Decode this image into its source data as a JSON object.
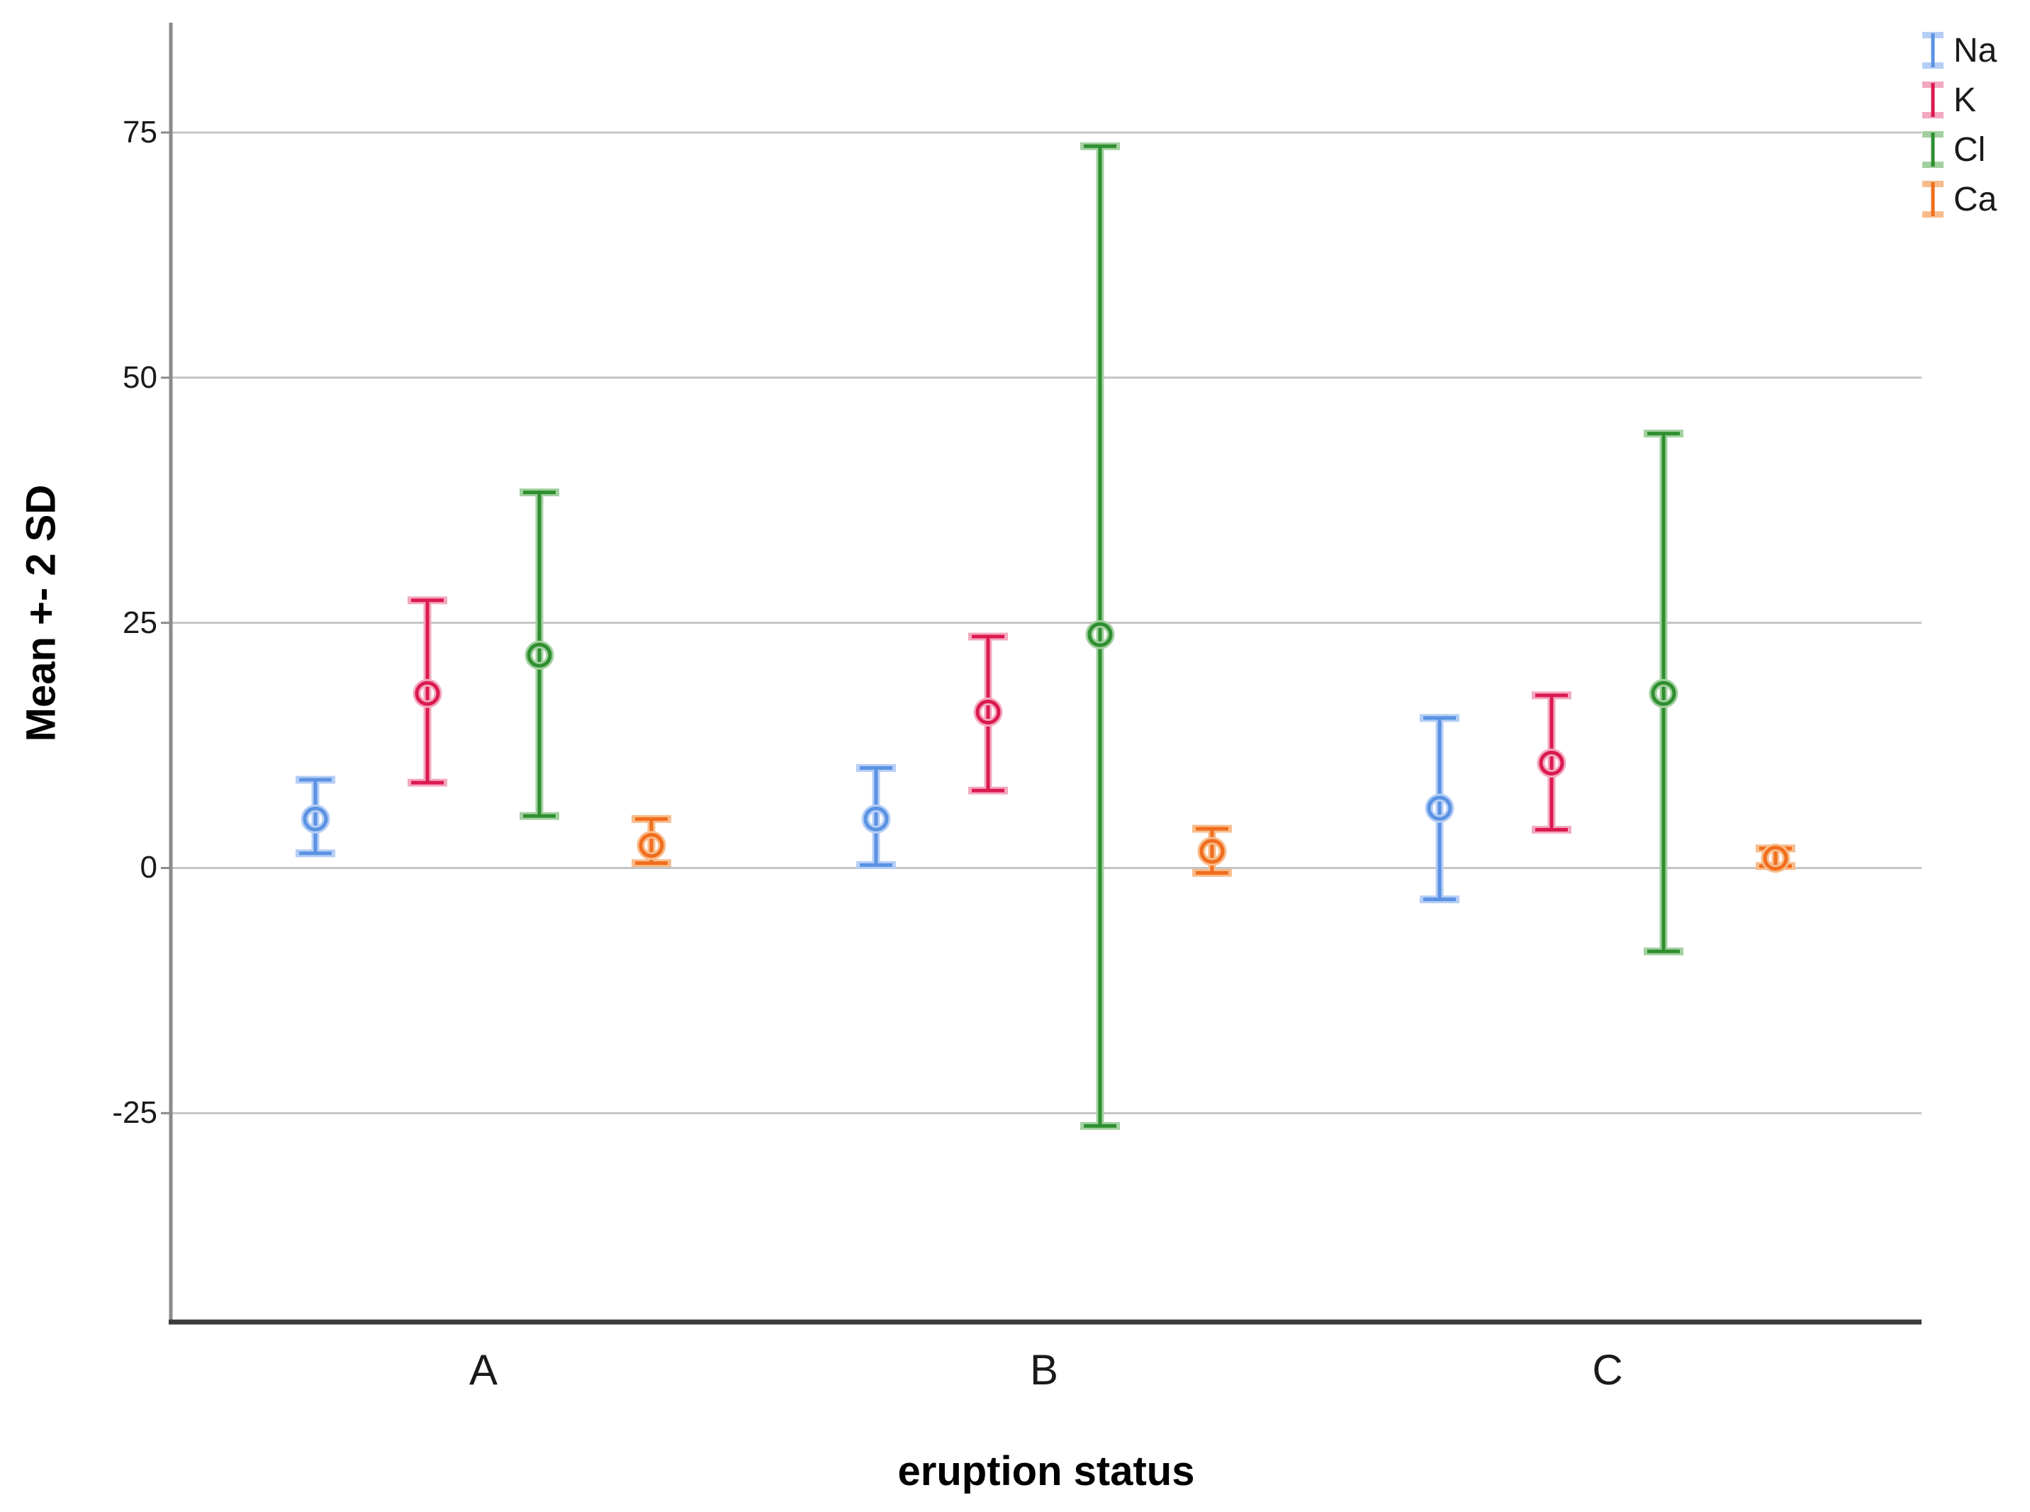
{
  "figure": {
    "background": "#ffffff"
  },
  "axes": {
    "x_title": "eruption status",
    "y_title": "Mean +- 2 SD",
    "y_tick_labels": [
      "75",
      "50",
      "25",
      "0",
      "-25"
    ],
    "x_category_labels": [
      "A",
      "B",
      "C"
    ]
  },
  "colors": {
    "axis_line": "#8a8a8a",
    "x_axis_line": "#3a3a3a",
    "gridline": "#c4c4c4",
    "text": "#1a1a1a"
  },
  "chart_data": {
    "type": "errorbar",
    "title": "",
    "xlabel": "eruption status",
    "ylabel": "Mean +- 2 SD",
    "categories": [
      "A",
      "B",
      "C"
    ],
    "series": [
      {
        "name": "Na",
        "color": "#5b92e3",
        "halo": "#b5cef5",
        "points": [
          {
            "cat": "A",
            "mean": 5.0,
            "low": 1.5,
            "high": 9.0
          },
          {
            "cat": "B",
            "mean": 5.0,
            "low": 0.3,
            "high": 10.2
          },
          {
            "cat": "C",
            "mean": 6.1,
            "low": -3.2,
            "high": 15.3
          }
        ]
      },
      {
        "name": "K",
        "color": "#db1a50",
        "halo": "#f3a8bf",
        "points": [
          {
            "cat": "A",
            "mean": 17.8,
            "low": 8.7,
            "high": 27.3
          },
          {
            "cat": "B",
            "mean": 15.9,
            "low": 7.9,
            "high": 23.6
          },
          {
            "cat": "C",
            "mean": 10.7,
            "low": 3.9,
            "high": 17.6
          }
        ]
      },
      {
        "name": "Cl",
        "color": "#2f8f30",
        "halo": "#a3d0a0",
        "points": [
          {
            "cat": "A",
            "mean": 21.7,
            "low": 5.3,
            "high": 38.3
          },
          {
            "cat": "B",
            "mean": 23.8,
            "low": -26.3,
            "high": 73.6
          },
          {
            "cat": "C",
            "mean": 17.8,
            "low": -8.5,
            "high": 44.3
          }
        ]
      },
      {
        "name": "Ca",
        "color": "#f06e1e",
        "halo": "#f8bc8c",
        "points": [
          {
            "cat": "A",
            "mean": 2.3,
            "low": 0.5,
            "high": 5.0
          },
          {
            "cat": "B",
            "mean": 1.7,
            "low": -0.5,
            "high": 4.0
          },
          {
            "cat": "C",
            "mean": 1.0,
            "low": 0.2,
            "high": 2.0
          }
        ]
      }
    ],
    "gridlines": [
      75,
      50,
      25,
      0,
      -25
    ],
    "ylim": [
      -46.3,
      86.2
    ],
    "grid": true,
    "legend_position": "top-right"
  }
}
